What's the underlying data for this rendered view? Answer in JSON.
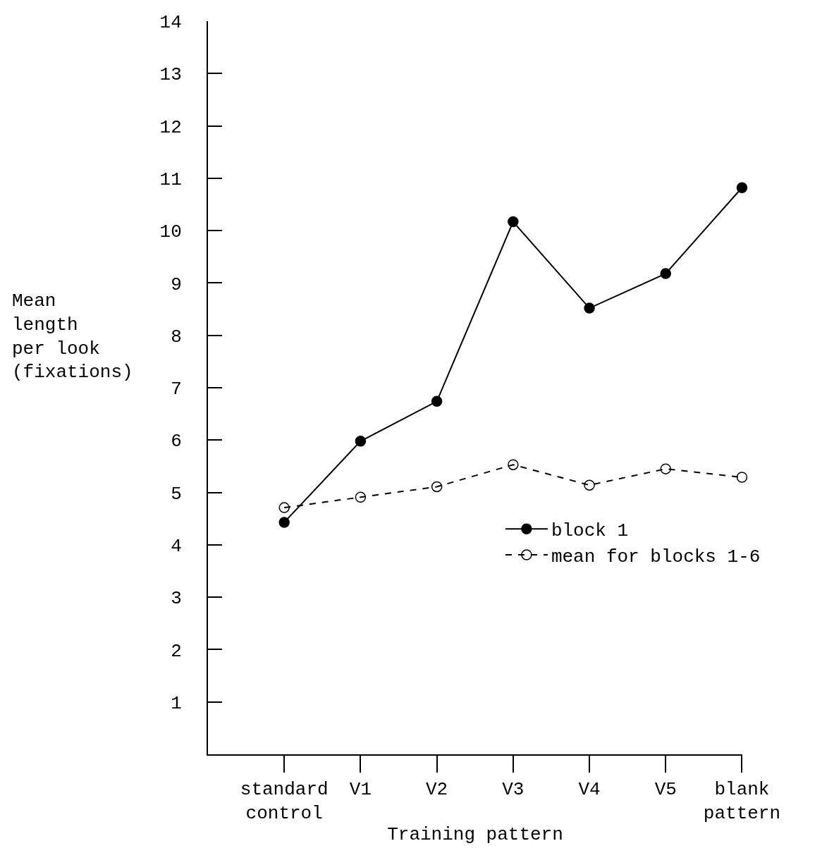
{
  "chart_data": {
    "type": "line",
    "xlabel": "Training pattern",
    "ylabel": "Mean length per look (fixations)",
    "categories": [
      "standard control",
      "V1",
      "V2",
      "V3",
      "V4",
      "V5",
      "blank pattern"
    ],
    "series": [
      {
        "name": "block 1",
        "color": "#000000",
        "marker": "circle",
        "line_style": "solid",
        "values": [
          4.43,
          5.98,
          6.74,
          10.17,
          8.52,
          9.18,
          10.82
        ]
      },
      {
        "name": "mean for blocks 1-6",
        "color": "#000000",
        "marker": "circle-open",
        "line_style": "dashed",
        "values": [
          4.71,
          4.91,
          5.11,
          5.53,
          5.14,
          5.45,
          5.29
        ]
      }
    ],
    "ylim": [
      0,
      14
    ],
    "yticks": [
      1,
      2,
      3,
      4,
      5,
      6,
      7,
      8,
      9,
      10,
      11,
      12,
      13,
      14
    ],
    "grid": false,
    "legend": "right"
  }
}
